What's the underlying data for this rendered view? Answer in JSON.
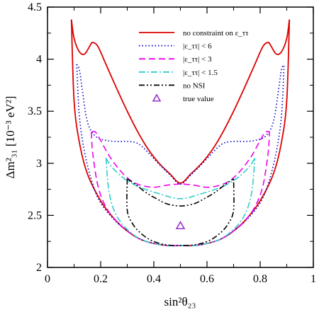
{
  "chart_data": {
    "type": "line",
    "xlabel": "sin²θ₂₃",
    "ylabel": "Δm²₃₁ [10⁻³ eV²]",
    "xlim": [
      0,
      1
    ],
    "ylim": [
      2,
      4.5
    ],
    "xticks": [
      "0",
      "0.2",
      "0.4",
      "0.6",
      "0.8",
      "1"
    ],
    "yticks": [
      "2",
      "2.5",
      "3",
      "3.5",
      "4",
      "4.5"
    ],
    "grid": false,
    "legend_position": "top-right",
    "series": [
      {
        "name": "no constraint on ε_ττ",
        "color": "#dd0000",
        "dash": "solid",
        "upper": [
          [
            0.09,
            4.38
          ],
          [
            0.1,
            4.2
          ],
          [
            0.12,
            4.07
          ],
          [
            0.14,
            4.05
          ],
          [
            0.16,
            4.13
          ],
          [
            0.17,
            4.16
          ],
          [
            0.19,
            4.12
          ],
          [
            0.22,
            3.95
          ],
          [
            0.26,
            3.72
          ],
          [
            0.3,
            3.5
          ],
          [
            0.34,
            3.3
          ],
          [
            0.38,
            3.13
          ],
          [
            0.42,
            3.0
          ],
          [
            0.46,
            2.9
          ],
          [
            0.5,
            2.81
          ],
          [
            0.54,
            2.9
          ],
          [
            0.58,
            3.0
          ],
          [
            0.62,
            3.13
          ],
          [
            0.66,
            3.3
          ],
          [
            0.7,
            3.5
          ],
          [
            0.74,
            3.72
          ],
          [
            0.78,
            3.95
          ],
          [
            0.81,
            4.12
          ],
          [
            0.83,
            4.16
          ],
          [
            0.84,
            4.13
          ],
          [
            0.86,
            4.05
          ],
          [
            0.88,
            4.07
          ],
          [
            0.9,
            4.2
          ],
          [
            0.91,
            4.38
          ]
        ],
        "lower": [
          [
            0.09,
            4.38
          ],
          [
            0.1,
            3.6
          ],
          [
            0.12,
            3.2
          ],
          [
            0.15,
            2.9
          ],
          [
            0.2,
            2.64
          ],
          [
            0.25,
            2.47
          ],
          [
            0.3,
            2.35
          ],
          [
            0.35,
            2.27
          ],
          [
            0.4,
            2.23
          ],
          [
            0.45,
            2.21
          ],
          [
            0.5,
            2.21
          ],
          [
            0.55,
            2.21
          ],
          [
            0.6,
            2.23
          ],
          [
            0.65,
            2.27
          ],
          [
            0.7,
            2.35
          ],
          [
            0.75,
            2.47
          ],
          [
            0.8,
            2.64
          ],
          [
            0.85,
            2.9
          ],
          [
            0.88,
            3.2
          ],
          [
            0.9,
            3.6
          ],
          [
            0.91,
            4.38
          ]
        ]
      },
      {
        "name": "|ε_ττ| < 6",
        "color": "#0000cc",
        "dash": "dotted",
        "upper": [
          [
            0.11,
            3.95
          ],
          [
            0.12,
            3.9
          ],
          [
            0.13,
            3.72
          ],
          [
            0.15,
            3.4
          ],
          [
            0.18,
            3.26
          ],
          [
            0.22,
            3.22
          ],
          [
            0.26,
            3.21
          ],
          [
            0.3,
            3.21
          ],
          [
            0.34,
            3.19
          ],
          [
            0.38,
            3.1
          ],
          [
            0.42,
            2.99
          ],
          [
            0.46,
            2.89
          ],
          [
            0.5,
            2.8
          ],
          [
            0.54,
            2.89
          ],
          [
            0.58,
            2.99
          ],
          [
            0.62,
            3.1
          ],
          [
            0.66,
            3.19
          ],
          [
            0.7,
            3.21
          ],
          [
            0.74,
            3.21
          ],
          [
            0.78,
            3.22
          ],
          [
            0.82,
            3.26
          ],
          [
            0.85,
            3.4
          ],
          [
            0.87,
            3.72
          ],
          [
            0.88,
            3.9
          ],
          [
            0.89,
            3.95
          ]
        ],
        "lower": [
          [
            0.11,
            3.95
          ],
          [
            0.12,
            3.45
          ],
          [
            0.14,
            3.1
          ],
          [
            0.17,
            2.8
          ],
          [
            0.2,
            2.62
          ],
          [
            0.25,
            2.46
          ],
          [
            0.3,
            2.35
          ],
          [
            0.35,
            2.27
          ],
          [
            0.4,
            2.23
          ],
          [
            0.45,
            2.21
          ],
          [
            0.5,
            2.21
          ],
          [
            0.55,
            2.21
          ],
          [
            0.6,
            2.23
          ],
          [
            0.65,
            2.27
          ],
          [
            0.7,
            2.35
          ],
          [
            0.75,
            2.46
          ],
          [
            0.8,
            2.62
          ],
          [
            0.83,
            2.8
          ],
          [
            0.86,
            3.1
          ],
          [
            0.88,
            3.45
          ],
          [
            0.89,
            3.95
          ]
        ]
      },
      {
        "name": "|ε_ττ| < 3",
        "color": "#ee00ee",
        "dash": "dashed",
        "upper": [
          [
            0.165,
            3.3
          ],
          [
            0.18,
            3.3
          ],
          [
            0.2,
            3.22
          ],
          [
            0.23,
            3.08
          ],
          [
            0.27,
            2.94
          ],
          [
            0.31,
            2.84
          ],
          [
            0.35,
            2.79
          ],
          [
            0.4,
            2.77
          ],
          [
            0.45,
            2.79
          ],
          [
            0.5,
            2.8
          ],
          [
            0.55,
            2.79
          ],
          [
            0.6,
            2.77
          ],
          [
            0.65,
            2.79
          ],
          [
            0.69,
            2.84
          ],
          [
            0.73,
            2.94
          ],
          [
            0.77,
            3.08
          ],
          [
            0.8,
            3.22
          ],
          [
            0.82,
            3.3
          ],
          [
            0.835,
            3.3
          ]
        ],
        "lower": [
          [
            0.165,
            3.3
          ],
          [
            0.17,
            3.1
          ],
          [
            0.19,
            2.78
          ],
          [
            0.22,
            2.58
          ],
          [
            0.26,
            2.44
          ],
          [
            0.3,
            2.35
          ],
          [
            0.35,
            2.27
          ],
          [
            0.4,
            2.23
          ],
          [
            0.45,
            2.21
          ],
          [
            0.5,
            2.21
          ],
          [
            0.55,
            2.21
          ],
          [
            0.6,
            2.23
          ],
          [
            0.65,
            2.27
          ],
          [
            0.7,
            2.35
          ],
          [
            0.74,
            2.44
          ],
          [
            0.78,
            2.58
          ],
          [
            0.81,
            2.78
          ],
          [
            0.83,
            3.1
          ],
          [
            0.835,
            3.3
          ]
        ]
      },
      {
        "name": "|ε_ττ| < 1.5",
        "color": "#33cccc",
        "dash": "dashdot",
        "upper": [
          [
            0.22,
            3.05
          ],
          [
            0.24,
            2.97
          ],
          [
            0.28,
            2.87
          ],
          [
            0.33,
            2.79
          ],
          [
            0.38,
            2.74
          ],
          [
            0.43,
            2.7
          ],
          [
            0.47,
            2.67
          ],
          [
            0.5,
            2.66
          ],
          [
            0.53,
            2.67
          ],
          [
            0.57,
            2.7
          ],
          [
            0.62,
            2.74
          ],
          [
            0.67,
            2.79
          ],
          [
            0.72,
            2.87
          ],
          [
            0.76,
            2.97
          ],
          [
            0.78,
            3.05
          ]
        ],
        "lower": [
          [
            0.22,
            3.05
          ],
          [
            0.23,
            2.75
          ],
          [
            0.25,
            2.55
          ],
          [
            0.28,
            2.42
          ],
          [
            0.32,
            2.32
          ],
          [
            0.36,
            2.26
          ],
          [
            0.4,
            2.23
          ],
          [
            0.45,
            2.21
          ],
          [
            0.5,
            2.21
          ],
          [
            0.55,
            2.21
          ],
          [
            0.6,
            2.23
          ],
          [
            0.64,
            2.26
          ],
          [
            0.68,
            2.32
          ],
          [
            0.72,
            2.42
          ],
          [
            0.75,
            2.55
          ],
          [
            0.77,
            2.75
          ],
          [
            0.78,
            3.05
          ]
        ]
      },
      {
        "name": "no NSI",
        "color": "#000000",
        "dash": "dashdotdot",
        "upper": [
          [
            0.3,
            2.85
          ],
          [
            0.33,
            2.8
          ],
          [
            0.37,
            2.72
          ],
          [
            0.41,
            2.66
          ],
          [
            0.45,
            2.61
          ],
          [
            0.5,
            2.59
          ],
          [
            0.55,
            2.61
          ],
          [
            0.59,
            2.66
          ],
          [
            0.63,
            2.72
          ],
          [
            0.67,
            2.8
          ],
          [
            0.7,
            2.85
          ]
        ],
        "lower": [
          [
            0.3,
            2.85
          ],
          [
            0.3,
            2.55
          ],
          [
            0.32,
            2.42
          ],
          [
            0.35,
            2.33
          ],
          [
            0.39,
            2.26
          ],
          [
            0.44,
            2.22
          ],
          [
            0.5,
            2.21
          ],
          [
            0.56,
            2.22
          ],
          [
            0.61,
            2.26
          ],
          [
            0.65,
            2.33
          ],
          [
            0.68,
            2.42
          ],
          [
            0.7,
            2.55
          ],
          [
            0.7,
            2.85
          ]
        ]
      }
    ],
    "markers": [
      {
        "name": "true value",
        "x": 0.5,
        "y": 2.4,
        "shape": "open-triangle",
        "color": "#9933cc"
      }
    ]
  }
}
